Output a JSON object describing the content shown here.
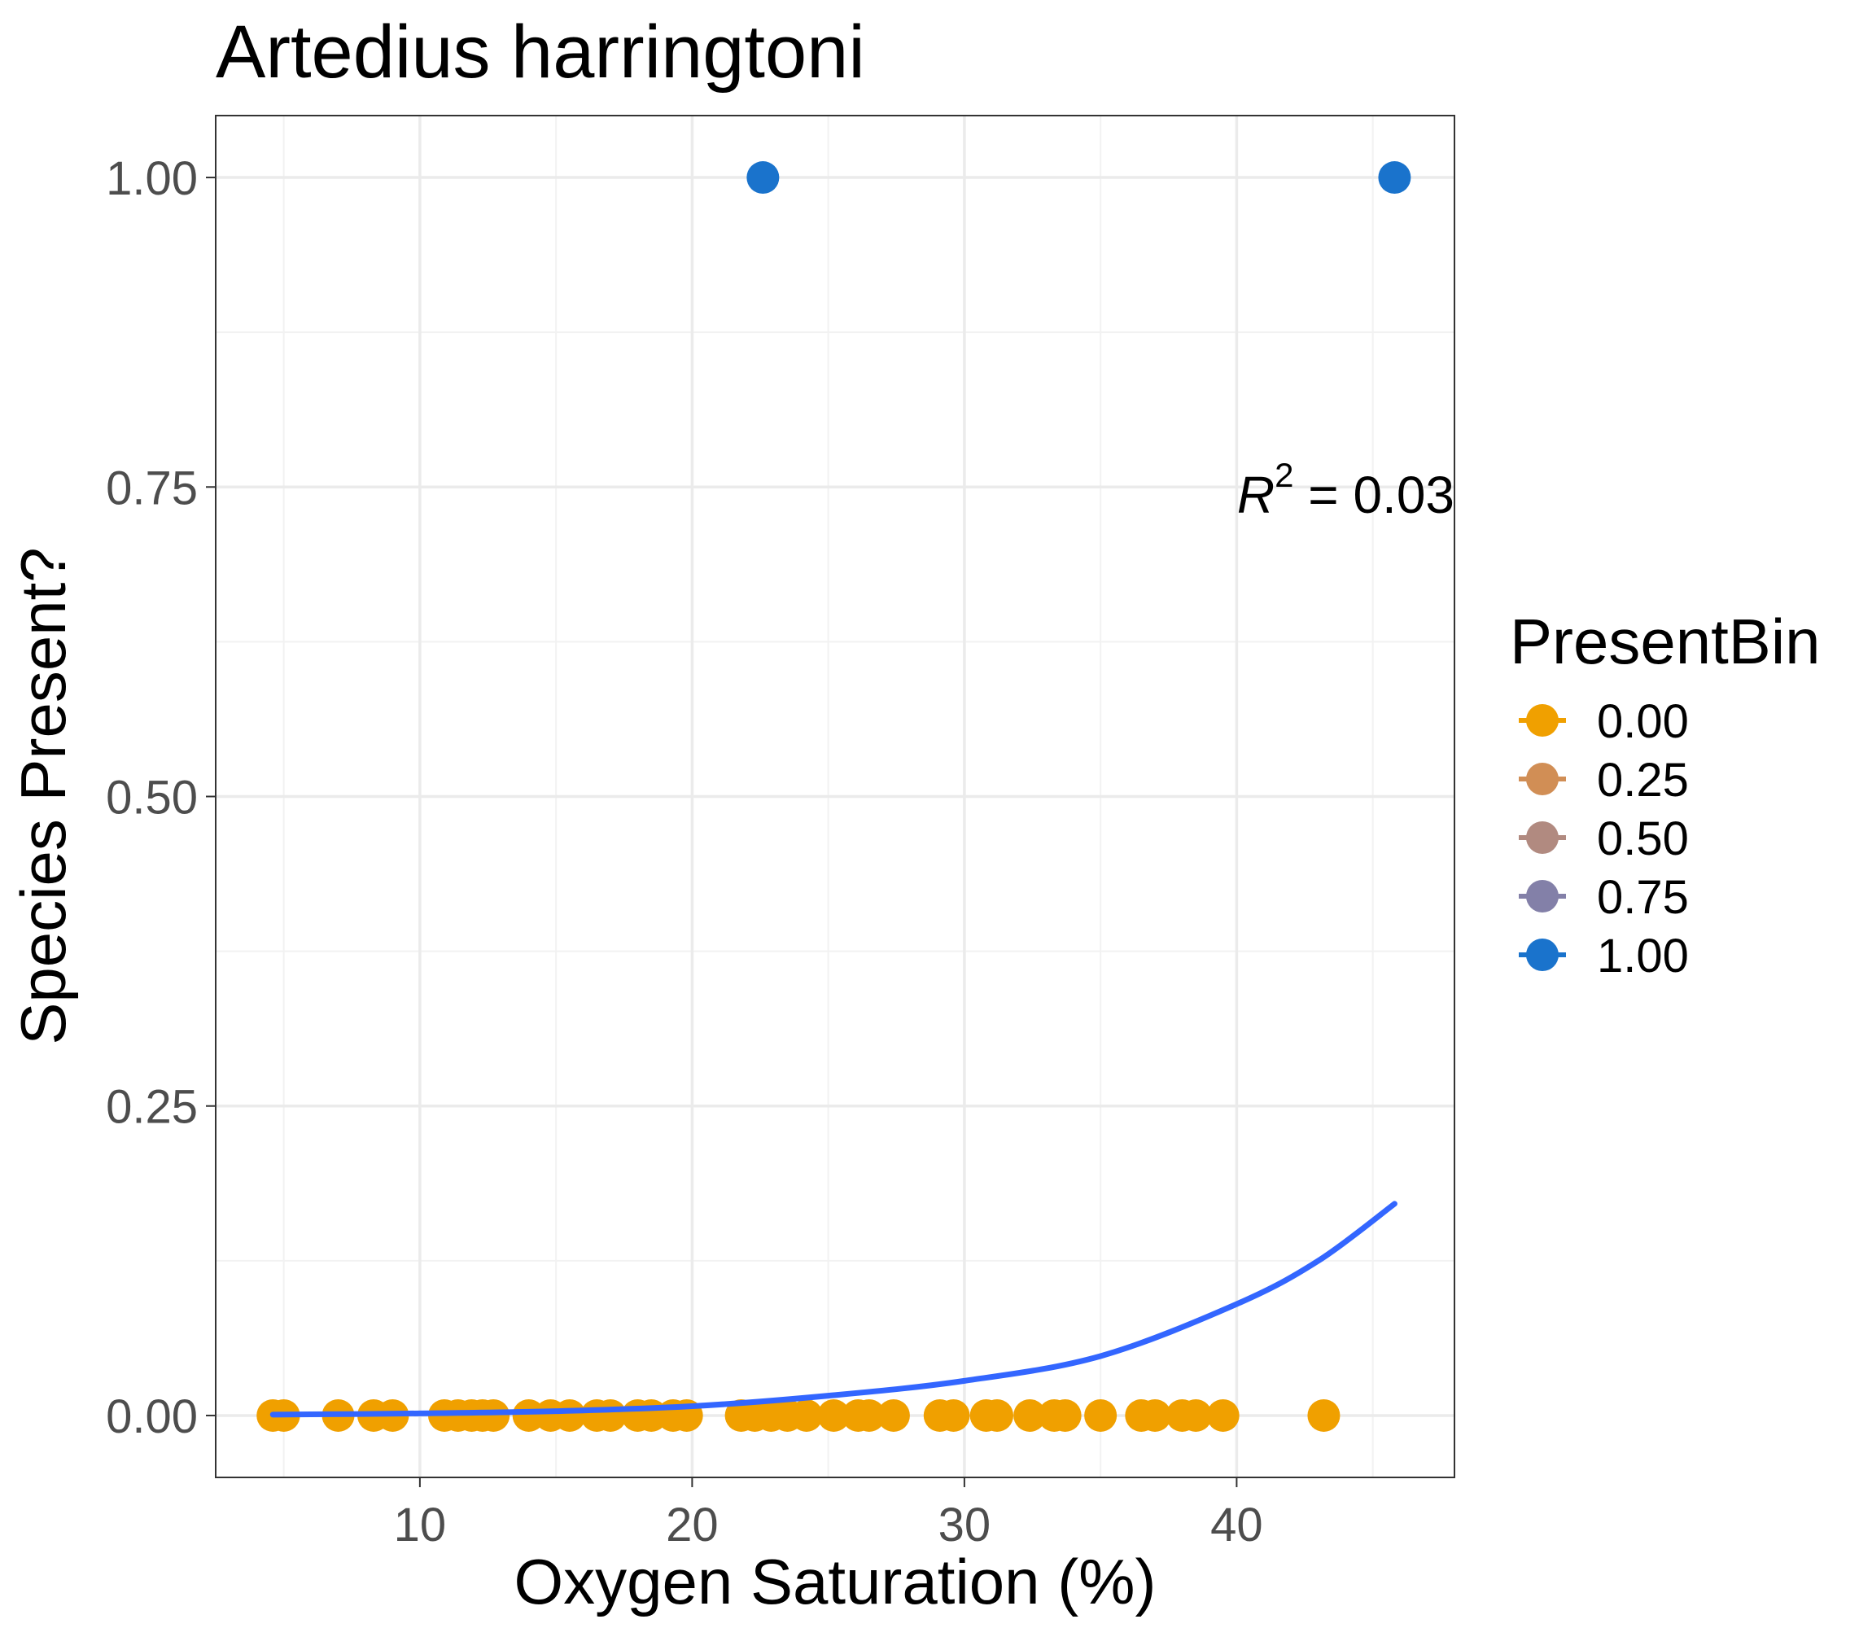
{
  "chart_data": {
    "type": "scatter",
    "title": "Artedius harringtoni",
    "xlabel": "Oxygen Saturation (%)",
    "ylabel": "Species Present?",
    "xlim": [
      2.5,
      48
    ],
    "ylim": [
      -0.05,
      1.05
    ],
    "x_ticks": [
      10,
      20,
      30,
      40
    ],
    "x_tick_labels": [
      "10",
      "20",
      "30",
      "40"
    ],
    "y_ticks": [
      0,
      0.25,
      0.5,
      0.75,
      1
    ],
    "y_tick_labels": [
      "0.00",
      "0.25",
      "0.50",
      "0.75",
      "1.00"
    ],
    "grid": true,
    "legend": {
      "title": "PresentBin",
      "position": "right",
      "entries": [
        {
          "label": "0.00",
          "color": "#F0A000"
        },
        {
          "label": "0.25",
          "color": "#D18E55"
        },
        {
          "label": "0.50",
          "color": "#B18A80"
        },
        {
          "label": "0.75",
          "color": "#8380A8"
        },
        {
          "label": "1.00",
          "color": "#1A73CC"
        }
      ]
    },
    "annotation": {
      "r2_label": "R",
      "r2_exponent": "2",
      "r2_text": " = 0.03"
    },
    "series": [
      {
        "color": "#F0A000",
        "points": [
          [
            4.6,
            0
          ],
          [
            5.0,
            0
          ],
          [
            7.0,
            0
          ],
          [
            8.3,
            0
          ],
          [
            9.0,
            0
          ],
          [
            10.9,
            0
          ],
          [
            11.4,
            0
          ],
          [
            11.9,
            0
          ],
          [
            12.3,
            0
          ],
          [
            12.7,
            0
          ],
          [
            14.0,
            0
          ],
          [
            14.8,
            0
          ],
          [
            15.5,
            0
          ],
          [
            16.5,
            0
          ],
          [
            17.0,
            0
          ],
          [
            18.0,
            0
          ],
          [
            18.5,
            0
          ],
          [
            19.3,
            0
          ],
          [
            19.8,
            0
          ],
          [
            21.8,
            0
          ],
          [
            22.3,
            0
          ],
          [
            22.9,
            0
          ],
          [
            23.5,
            0
          ],
          [
            24.2,
            0
          ],
          [
            25.2,
            0
          ],
          [
            26.1,
            0
          ],
          [
            26.5,
            0
          ],
          [
            27.4,
            0
          ],
          [
            29.1,
            0
          ],
          [
            29.6,
            0
          ],
          [
            30.8,
            0
          ],
          [
            31.2,
            0
          ],
          [
            32.4,
            0
          ],
          [
            33.3,
            0
          ],
          [
            33.7,
            0
          ],
          [
            35.0,
            0
          ],
          [
            36.5,
            0
          ],
          [
            37.0,
            0
          ],
          [
            38.0,
            0
          ],
          [
            38.5,
            0
          ],
          [
            39.5,
            0
          ],
          [
            43.2,
            0
          ]
        ]
      },
      {
        "color": "#1A73CC",
        "points": [
          [
            22.6,
            1
          ],
          [
            45.8,
            1
          ]
        ]
      }
    ],
    "fit": {
      "type": "logistic",
      "color": "#3366FF",
      "x_range": [
        4.6,
        45.8
      ],
      "points": [
        [
          4.6,
          0.0007
        ],
        [
          10,
          0.0017
        ],
        [
          15,
          0.0035
        ],
        [
          20,
          0.0075
        ],
        [
          25,
          0.016
        ],
        [
          30,
          0.028
        ],
        [
          35,
          0.048
        ],
        [
          40,
          0.09
        ],
        [
          43,
          0.125
        ],
        [
          45.8,
          0.171
        ]
      ]
    }
  }
}
